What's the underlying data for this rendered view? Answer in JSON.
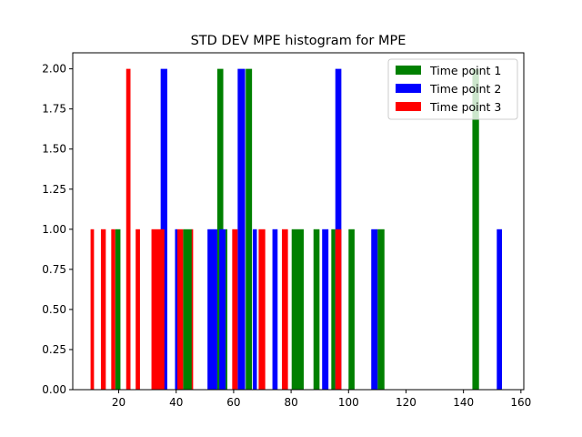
{
  "chart_data": {
    "type": "bar",
    "title": "STD DEV MPE histogram for MPE",
    "xlabel": "",
    "ylabel": "",
    "xlim": [
      4,
      161
    ],
    "ylim": [
      0,
      2.1
    ],
    "x_ticks": [
      20,
      40,
      60,
      80,
      100,
      120,
      140,
      160
    ],
    "x_tick_labels": [
      "20",
      "40",
      "60",
      "80",
      "100",
      "120",
      "140",
      "160"
    ],
    "y_ticks": [
      0,
      0.25,
      0.5,
      0.75,
      1.0,
      1.25,
      1.5,
      1.75,
      2.0
    ],
    "y_tick_labels": [
      "0.00",
      "0.25",
      "0.50",
      "0.75",
      "1.00",
      "1.25",
      "1.50",
      "1.75",
      "2.00"
    ],
    "grid": false,
    "legend_placement": "top-right",
    "series": [
      {
        "name": "Time point 1",
        "color": "#008000",
        "bars": [
          {
            "x0": 18.8,
            "x1": 20.6,
            "value": 1
          },
          {
            "x0": 42.4,
            "x1": 45.5,
            "value": 1
          },
          {
            "x0": 54.3,
            "x1": 56.4,
            "value": 2
          },
          {
            "x0": 57.2,
            "x1": 57.8,
            "value": 1
          },
          {
            "x0": 64.2,
            "x1": 66.4,
            "value": 2
          },
          {
            "x0": 80.2,
            "x1": 84.4,
            "value": 1
          },
          {
            "x0": 87.8,
            "x1": 89.9,
            "value": 1
          },
          {
            "x0": 94.0,
            "x1": 95.4,
            "value": 1
          },
          {
            "x0": 100.0,
            "x1": 102.1,
            "value": 1
          },
          {
            "x0": 110.1,
            "x1": 112.5,
            "value": 1
          },
          {
            "x0": 143.1,
            "x1": 145.4,
            "value": 2
          }
        ]
      },
      {
        "name": "Time point 2",
        "color": "#0000ff",
        "bars": [
          {
            "x0": 34.6,
            "x1": 36.9,
            "value": 2
          },
          {
            "x0": 39.6,
            "x1": 40.4,
            "value": 1
          },
          {
            "x0": 50.9,
            "x1": 54.3,
            "value": 1
          },
          {
            "x0": 55.0,
            "x1": 57.2,
            "value": 1
          },
          {
            "x0": 61.4,
            "x1": 64.0,
            "value": 2
          },
          {
            "x0": 66.7,
            "x1": 68.1,
            "value": 1
          },
          {
            "x0": 73.5,
            "x1": 75.3,
            "value": 1
          },
          {
            "x0": 90.8,
            "x1": 93.0,
            "value": 1
          },
          {
            "x0": 95.4,
            "x1": 97.5,
            "value": 2
          },
          {
            "x0": 107.9,
            "x1": 110.1,
            "value": 1
          },
          {
            "x0": 151.6,
            "x1": 153.4,
            "value": 1
          }
        ]
      },
      {
        "name": "Time point 3",
        "color": "#ff0000",
        "bars": [
          {
            "x0": 10.2,
            "x1": 11.4,
            "value": 1
          },
          {
            "x0": 13.8,
            "x1": 15.5,
            "value": 1
          },
          {
            "x0": 17.4,
            "x1": 18.8,
            "value": 1
          },
          {
            "x0": 22.6,
            "x1": 24.1,
            "value": 2
          },
          {
            "x0": 25.9,
            "x1": 27.4,
            "value": 1
          },
          {
            "x0": 31.4,
            "x1": 35.9,
            "value": 1
          },
          {
            "x0": 40.4,
            "x1": 42.4,
            "value": 1
          },
          {
            "x0": 45.4,
            "x1": 45.9,
            "value": 1
          },
          {
            "x0": 59.5,
            "x1": 61.4,
            "value": 1
          },
          {
            "x0": 68.7,
            "x1": 71.0,
            "value": 1
          },
          {
            "x0": 76.8,
            "x1": 78.9,
            "value": 1
          },
          {
            "x0": 95.4,
            "x1": 97.5,
            "value": 1
          }
        ]
      }
    ]
  }
}
